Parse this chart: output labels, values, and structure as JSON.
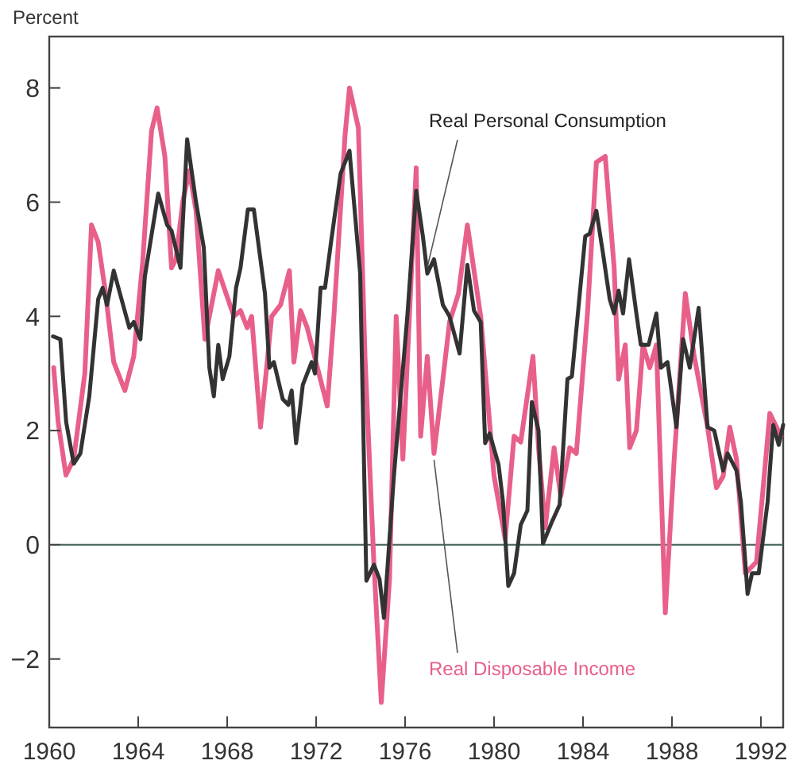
{
  "chart_data": {
    "type": "line",
    "ylabel": "Percent",
    "xlim": [
      1960,
      1993
    ],
    "xticks": [
      1960,
      1964,
      1968,
      1972,
      1976,
      1980,
      1984,
      1988,
      1992
    ],
    "ylim": [
      -3.2,
      8.9
    ],
    "yticks": [
      -2,
      0,
      2,
      4,
      6,
      8
    ],
    "grid": false,
    "ref_lines": [
      {
        "axis": "y",
        "value": 0,
        "color": "#4f6b64"
      }
    ],
    "series": [
      {
        "name": "Real Personal Consumption",
        "color": "#333333",
        "x": [
          1960.17,
          1960.5,
          1960.76,
          1961.1,
          1961.4,
          1961.8,
          1962.2,
          1962.4,
          1962.6,
          1962.9,
          1963.6,
          1963.8,
          1964.1,
          1964.3,
          1964.9,
          1965.3,
          1965.5,
          1965.9,
          1966.2,
          1966.6,
          1966.95,
          1967.2,
          1967.4,
          1967.6,
          1967.8,
          1968.1,
          1968.4,
          1968.6,
          1968.93,
          1969.2,
          1969.7,
          1969.9,
          1970.1,
          1970.5,
          1970.75,
          1970.9,
          1971.1,
          1971.4,
          1971.8,
          1971.95,
          1972.2,
          1972.4,
          1972.67,
          1973.1,
          1973.5,
          1973.98,
          1974.26,
          1974.6,
          1974.85,
          1975.05,
          1975.5,
          1976.1,
          1976.5,
          1976.8,
          1977.0,
          1977.3,
          1977.7,
          1978.0,
          1978.45,
          1978.8,
          1979.1,
          1979.4,
          1979.6,
          1979.8,
          1980.2,
          1980.4,
          1980.64,
          1980.9,
          1981.2,
          1981.5,
          1981.7,
          1982.0,
          1982.2,
          1982.6,
          1982.95,
          1983.3,
          1983.5,
          1984.1,
          1984.3,
          1984.6,
          1984.9,
          1985.2,
          1985.4,
          1985.6,
          1985.8,
          1986.07,
          1986.4,
          1986.6,
          1986.95,
          1987.3,
          1987.5,
          1987.8,
          1988.2,
          1988.5,
          1988.8,
          1989.2,
          1989.6,
          1989.9,
          1990.3,
          1990.5,
          1990.9,
          1991.1,
          1991.4,
          1991.6,
          1991.9,
          1992.3,
          1992.55,
          1992.8,
          1993.0
        ],
        "values": [
          3.65,
          3.6,
          2.15,
          1.42,
          1.6,
          2.6,
          4.3,
          4.5,
          4.2,
          4.8,
          3.8,
          3.9,
          3.6,
          4.7,
          6.15,
          5.6,
          5.5,
          4.85,
          7.1,
          6.0,
          5.2,
          3.1,
          2.6,
          3.5,
          2.9,
          3.3,
          4.5,
          4.85,
          5.87,
          5.87,
          4.4,
          3.1,
          3.2,
          2.55,
          2.45,
          2.7,
          1.78,
          2.8,
          3.2,
          3.0,
          4.5,
          4.5,
          5.3,
          6.5,
          6.9,
          4.75,
          -0.63,
          -0.35,
          -0.6,
          -1.28,
          1.22,
          4.0,
          6.2,
          5.4,
          4.75,
          5.0,
          4.2,
          4.0,
          3.35,
          4.9,
          4.1,
          3.9,
          1.78,
          1.95,
          1.41,
          0.76,
          -0.72,
          -0.5,
          0.35,
          0.6,
          2.5,
          2.0,
          0.02,
          0.4,
          0.7,
          2.9,
          2.95,
          5.4,
          5.45,
          5.85,
          5.1,
          4.3,
          4.05,
          4.45,
          4.05,
          5.0,
          4.05,
          3.5,
          3.5,
          4.05,
          3.1,
          3.2,
          2.06,
          3.6,
          3.1,
          4.15,
          2.06,
          2.0,
          1.3,
          1.6,
          1.3,
          0.75,
          -0.86,
          -0.5,
          -0.5,
          0.75,
          2.1,
          1.75,
          2.1
        ]
      },
      {
        "name": "Real Disposable Income",
        "color": "#e8608a",
        "x": [
          1960.2,
          1960.4,
          1960.75,
          1961.1,
          1961.6,
          1961.9,
          1962.2,
          1962.5,
          1962.9,
          1963.4,
          1963.8,
          1964.2,
          1964.6,
          1964.85,
          1965.2,
          1965.5,
          1965.7,
          1966.0,
          1966.3,
          1966.6,
          1967.0,
          1967.2,
          1967.6,
          1968.3,
          1968.6,
          1968.9,
          1969.1,
          1969.5,
          1969.8,
          1970.0,
          1970.4,
          1970.8,
          1971.0,
          1971.3,
          1971.6,
          1972.5,
          1972.8,
          1973.3,
          1973.5,
          1973.9,
          1974.2,
          1974.6,
          1974.93,
          1975.3,
          1975.6,
          1975.9,
          1976.5,
          1976.7,
          1977.0,
          1977.3,
          1977.7,
          1978.0,
          1978.4,
          1978.8,
          1979.1,
          1979.4,
          1980.0,
          1980.5,
          1980.9,
          1981.2,
          1981.75,
          1982.0,
          1982.3,
          1982.7,
          1983.0,
          1983.4,
          1983.7,
          1984.2,
          1984.6,
          1985.0,
          1985.4,
          1985.6,
          1985.9,
          1986.1,
          1986.4,
          1986.7,
          1987.0,
          1987.3,
          1987.7,
          1988.1,
          1988.6,
          1989.0,
          1989.6,
          1990.0,
          1990.3,
          1990.6,
          1990.9,
          1991.3,
          1991.8,
          1992.4,
          1992.9
        ],
        "values": [
          3.1,
          2.15,
          1.22,
          1.5,
          3.0,
          5.6,
          5.3,
          4.5,
          3.2,
          2.7,
          3.3,
          4.95,
          7.25,
          7.65,
          6.8,
          4.85,
          5.0,
          6.0,
          6.55,
          5.85,
          3.6,
          4.0,
          4.8,
          4.0,
          4.1,
          3.8,
          4.0,
          2.06,
          3.2,
          4.0,
          4.2,
          4.8,
          3.2,
          4.1,
          3.8,
          2.43,
          4.0,
          7.17,
          8.0,
          7.3,
          3.27,
          -0.35,
          -2.76,
          -0.6,
          4.0,
          1.5,
          6.6,
          1.9,
          3.3,
          1.6,
          2.9,
          3.9,
          4.4,
          5.6,
          4.8,
          4.0,
          1.2,
          0.1,
          1.9,
          1.8,
          3.3,
          1.7,
          0.3,
          1.7,
          0.85,
          1.7,
          1.6,
          4.05,
          6.7,
          6.8,
          4.85,
          2.9,
          3.5,
          1.7,
          2.0,
          3.5,
          3.1,
          3.5,
          -1.19,
          1.5,
          4.4,
          3.3,
          2.06,
          1.0,
          1.2,
          2.06,
          1.5,
          -0.5,
          -0.3,
          2.3,
          1.9
        ]
      }
    ]
  }
}
